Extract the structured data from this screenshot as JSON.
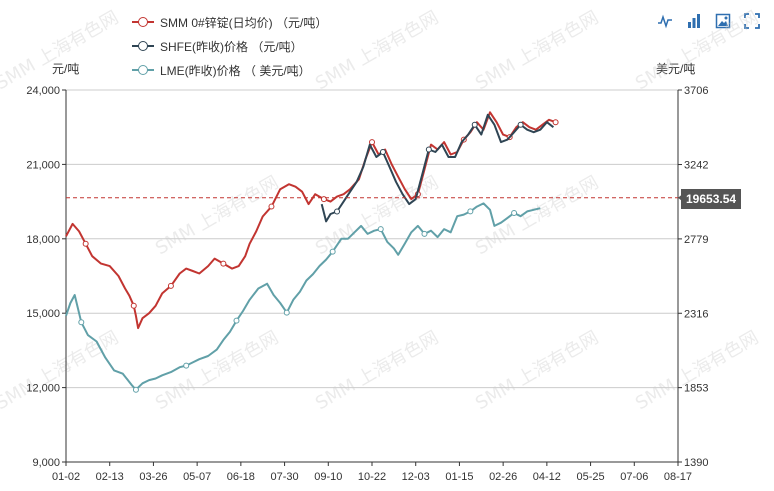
{
  "legend": [
    {
      "name": "SMM 0#锌锭(日均价) （元/吨）",
      "color": "#c23531"
    },
    {
      "name": "SHFE(昨收)价格 （元/吨）",
      "color": "#2f4554"
    },
    {
      "name": "LME(昨收)价格 （  美元/吨）",
      "color": "#61a0a8"
    }
  ],
  "watermark": "SMM 上海有色网",
  "toolbox": [
    "line-chart-icon",
    "bar-chart-icon",
    "save-image-icon",
    "fullscreen-icon"
  ],
  "chart_data": {
    "type": "line",
    "x_ticks": [
      "01-02",
      "02-13",
      "03-26",
      "05-07",
      "06-18",
      "07-30",
      "09-10",
      "10-22",
      "12-03",
      "01-15",
      "02-26",
      "04-12",
      "05-25",
      "07-06",
      "08-17"
    ],
    "y_left": {
      "unit": "元/吨",
      "ticks": [
        9000,
        12000,
        15000,
        18000,
        21000,
        24000
      ],
      "min": 9000,
      "max": 24000
    },
    "y_right": {
      "unit": "美元/吨",
      "ticks": [
        1390,
        1853,
        2316,
        2779,
        3242,
        3706
      ],
      "min": 1390,
      "max": 3706
    },
    "mark_line": {
      "value": 19653.54,
      "label": "19653.54",
      "axis": "left"
    },
    "grid": true,
    "series": [
      {
        "name": "SMM 0#锌锭(日均价) （元/吨）",
        "axis": "left",
        "color": "#c23531",
        "points": [
          [
            0,
            18100
          ],
          [
            0.15,
            18600
          ],
          [
            0.3,
            18300
          ],
          [
            0.45,
            17800
          ],
          [
            0.6,
            17300
          ],
          [
            0.8,
            17000
          ],
          [
            1.0,
            16900
          ],
          [
            1.2,
            16500
          ],
          [
            1.35,
            16000
          ],
          [
            1.45,
            15700
          ],
          [
            1.55,
            15300
          ],
          [
            1.6,
            14900
          ],
          [
            1.65,
            14400
          ],
          [
            1.75,
            14800
          ],
          [
            1.9,
            15000
          ],
          [
            2.05,
            15300
          ],
          [
            2.2,
            15800
          ],
          [
            2.4,
            16100
          ],
          [
            2.6,
            16600
          ],
          [
            2.75,
            16800
          ],
          [
            2.9,
            16700
          ],
          [
            3.05,
            16600
          ],
          [
            3.25,
            16900
          ],
          [
            3.4,
            17200
          ],
          [
            3.6,
            17000
          ],
          [
            3.8,
            16800
          ],
          [
            3.95,
            16900
          ],
          [
            4.1,
            17300
          ],
          [
            4.2,
            17800
          ],
          [
            4.35,
            18300
          ],
          [
            4.5,
            18900
          ],
          [
            4.7,
            19300
          ],
          [
            4.9,
            20000
          ],
          [
            5.1,
            20200
          ],
          [
            5.25,
            20100
          ],
          [
            5.4,
            19900
          ],
          [
            5.55,
            19400
          ],
          [
            5.7,
            19800
          ],
          [
            5.9,
            19600
          ],
          [
            6.05,
            19500
          ],
          [
            6.2,
            19700
          ],
          [
            6.35,
            19800
          ],
          [
            6.5,
            20000
          ],
          [
            6.7,
            20400
          ],
          [
            6.85,
            21200
          ],
          [
            7.0,
            21900
          ],
          [
            7.15,
            21400
          ],
          [
            7.3,
            21600
          ],
          [
            7.45,
            21000
          ],
          [
            7.6,
            20500
          ],
          [
            7.75,
            20000
          ],
          [
            7.9,
            19600
          ],
          [
            8.05,
            19800
          ],
          [
            8.2,
            20800
          ],
          [
            8.35,
            21800
          ],
          [
            8.5,
            21600
          ],
          [
            8.65,
            21900
          ],
          [
            8.8,
            21400
          ],
          [
            8.95,
            21500
          ],
          [
            9.1,
            22000
          ],
          [
            9.25,
            22300
          ],
          [
            9.4,
            22700
          ],
          [
            9.55,
            22400
          ],
          [
            9.7,
            23100
          ],
          [
            9.85,
            22700
          ],
          [
            10.0,
            22200
          ],
          [
            10.15,
            22100
          ],
          [
            10.3,
            22500
          ],
          [
            10.45,
            22700
          ],
          [
            10.6,
            22500
          ],
          [
            10.75,
            22400
          ],
          [
            10.9,
            22600
          ],
          [
            11.05,
            22800
          ],
          [
            11.2,
            22700
          ]
        ]
      },
      {
        "name": "SHFE(昨收)价格 （元/吨）",
        "axis": "left",
        "color": "#2f4554",
        "points": [
          [
            5.85,
            19400
          ],
          [
            5.95,
            18700
          ],
          [
            6.05,
            19000
          ],
          [
            6.2,
            19100
          ],
          [
            6.35,
            19500
          ],
          [
            6.5,
            19900
          ],
          [
            6.65,
            20300
          ],
          [
            6.8,
            20900
          ],
          [
            6.95,
            21800
          ],
          [
            7.1,
            21300
          ],
          [
            7.25,
            21500
          ],
          [
            7.4,
            20900
          ],
          [
            7.55,
            20300
          ],
          [
            7.7,
            19800
          ],
          [
            7.85,
            19400
          ],
          [
            8.0,
            19600
          ],
          [
            8.15,
            20600
          ],
          [
            8.3,
            21600
          ],
          [
            8.45,
            21500
          ],
          [
            8.6,
            21800
          ],
          [
            8.75,
            21300
          ],
          [
            8.9,
            21300
          ],
          [
            9.05,
            21900
          ],
          [
            9.2,
            22200
          ],
          [
            9.35,
            22600
          ],
          [
            9.5,
            22200
          ],
          [
            9.65,
            23000
          ],
          [
            9.8,
            22600
          ],
          [
            9.95,
            21900
          ],
          [
            10.1,
            22000
          ],
          [
            10.25,
            22300
          ],
          [
            10.4,
            22600
          ],
          [
            10.55,
            22400
          ],
          [
            10.7,
            22300
          ],
          [
            10.85,
            22400
          ],
          [
            11.0,
            22700
          ],
          [
            11.15,
            22500
          ]
        ]
      },
      {
        "name": "LME(昨收)价格 （  美元/吨）",
        "axis": "right",
        "color": "#61a0a8",
        "points": [
          [
            0,
            2300
          ],
          [
            0.1,
            2380
          ],
          [
            0.2,
            2430
          ],
          [
            0.35,
            2260
          ],
          [
            0.5,
            2180
          ],
          [
            0.7,
            2140
          ],
          [
            0.9,
            2040
          ],
          [
            1.1,
            1960
          ],
          [
            1.3,
            1940
          ],
          [
            1.5,
            1870
          ],
          [
            1.6,
            1840
          ],
          [
            1.75,
            1880
          ],
          [
            1.9,
            1900
          ],
          [
            2.05,
            1910
          ],
          [
            2.2,
            1930
          ],
          [
            2.4,
            1950
          ],
          [
            2.6,
            1980
          ],
          [
            2.75,
            1990
          ],
          [
            2.9,
            2010
          ],
          [
            3.05,
            2030
          ],
          [
            3.25,
            2050
          ],
          [
            3.45,
            2090
          ],
          [
            3.6,
            2150
          ],
          [
            3.75,
            2200
          ],
          [
            3.9,
            2270
          ],
          [
            4.05,
            2330
          ],
          [
            4.2,
            2400
          ],
          [
            4.4,
            2470
          ],
          [
            4.6,
            2500
          ],
          [
            4.75,
            2430
          ],
          [
            4.9,
            2380
          ],
          [
            5.05,
            2320
          ],
          [
            5.2,
            2400
          ],
          [
            5.35,
            2450
          ],
          [
            5.5,
            2520
          ],
          [
            5.65,
            2560
          ],
          [
            5.8,
            2610
          ],
          [
            5.95,
            2650
          ],
          [
            6.1,
            2700
          ],
          [
            6.3,
            2780
          ],
          [
            6.45,
            2780
          ],
          [
            6.6,
            2820
          ],
          [
            6.75,
            2860
          ],
          [
            6.9,
            2810
          ],
          [
            7.05,
            2830
          ],
          [
            7.2,
            2840
          ],
          [
            7.35,
            2760
          ],
          [
            7.5,
            2720
          ],
          [
            7.6,
            2680
          ],
          [
            7.75,
            2750
          ],
          [
            7.9,
            2820
          ],
          [
            8.05,
            2860
          ],
          [
            8.2,
            2810
          ],
          [
            8.35,
            2830
          ],
          [
            8.5,
            2790
          ],
          [
            8.65,
            2840
          ],
          [
            8.8,
            2820
          ],
          [
            8.95,
            2920
          ],
          [
            9.1,
            2930
          ],
          [
            9.25,
            2950
          ],
          [
            9.4,
            2980
          ],
          [
            9.55,
            3000
          ],
          [
            9.7,
            2960
          ],
          [
            9.8,
            2860
          ],
          [
            9.95,
            2880
          ],
          [
            10.1,
            2910
          ],
          [
            10.25,
            2940
          ],
          [
            10.4,
            2920
          ],
          [
            10.55,
            2950
          ],
          [
            10.7,
            2960
          ],
          [
            10.85,
            2970
          ]
        ]
      }
    ]
  }
}
